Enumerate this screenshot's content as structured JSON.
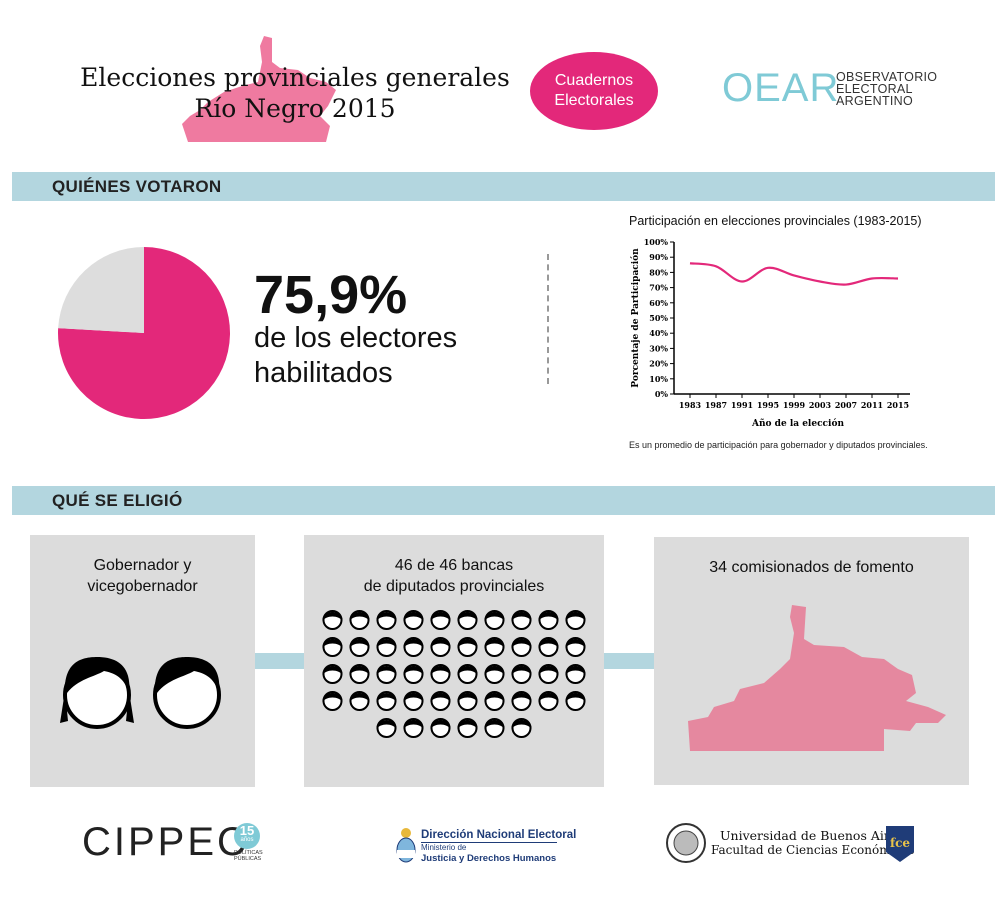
{
  "header": {
    "title_line1": "Elecciones provinciales generales",
    "title_line2": "Río Negro 2015",
    "badge_line1": "Cuadernos",
    "badge_line2": "Electorales",
    "oear_mark": "OEAR",
    "oear_line1": "OBSERVATORIO",
    "oear_line2": "ELECTORAL",
    "oear_line3": "ARGENTINO"
  },
  "sections": {
    "votaron": "QUIÉNES VOTARON",
    "eligio": "QUÉ SE ELIGIÓ"
  },
  "stat": {
    "percent": "75,9%",
    "line1": "de los electores",
    "line2": "habilitados",
    "value": 75.9
  },
  "chart_note": "Es un promedio de participación para gobernador y diputados provinciales.",
  "chart_data": [
    {
      "type": "pie",
      "values": [
        75.9,
        24.1
      ],
      "colors": [
        "#e3287a",
        "#dddddd"
      ]
    },
    {
      "type": "line",
      "title": "Participación en elecciones provinciales (1983-2015)",
      "xlabel": "Año de la elección",
      "ylabel": "Porcentaje de Participación",
      "x": [
        "1983",
        "1987",
        "1991",
        "1995",
        "1999",
        "2003",
        "2007",
        "2011",
        "2015"
      ],
      "series": [
        {
          "values": [
            86,
            84,
            74,
            83,
            78,
            74,
            72,
            76,
            76
          ]
        }
      ],
      "ylim": [
        0,
        100
      ],
      "yticks": [
        "0%",
        "10%",
        "20%",
        "30%",
        "40%",
        "50%",
        "60%",
        "70%",
        "80%",
        "90%",
        "100%"
      ],
      "color": "#e3287a",
      "grid": false
    }
  ],
  "panels": {
    "p1_line1": "Gobernador y",
    "p1_line2": "vicegobernador",
    "p2_line1": "46 de 46 bancas",
    "p2_line2": "de diputados provinciales",
    "p2_seats": 46,
    "p3_title": "34 comisionados de fomento"
  },
  "colors": {
    "accent": "#e3287a",
    "bar": "#b3d6df",
    "panel": "#dcdcdc",
    "map": "#e5889f"
  },
  "footer": {
    "cippec": "CIPPEC",
    "cippec_badge": "15",
    "cippec_badge_sub": "años",
    "cippec_sub1": "POLÍTICAS",
    "cippec_sub2": "PÚBLICAS",
    "dne_line1": "Dirección Nacional Electoral",
    "dne_line2": "Ministerio de",
    "dne_line3": "Justicia y Derechos Humanos",
    "uba_line1": "Universidad de Buenos Aires",
    "uba_line2": "Facultad de Ciencias Económicas",
    "fce": "fce"
  }
}
